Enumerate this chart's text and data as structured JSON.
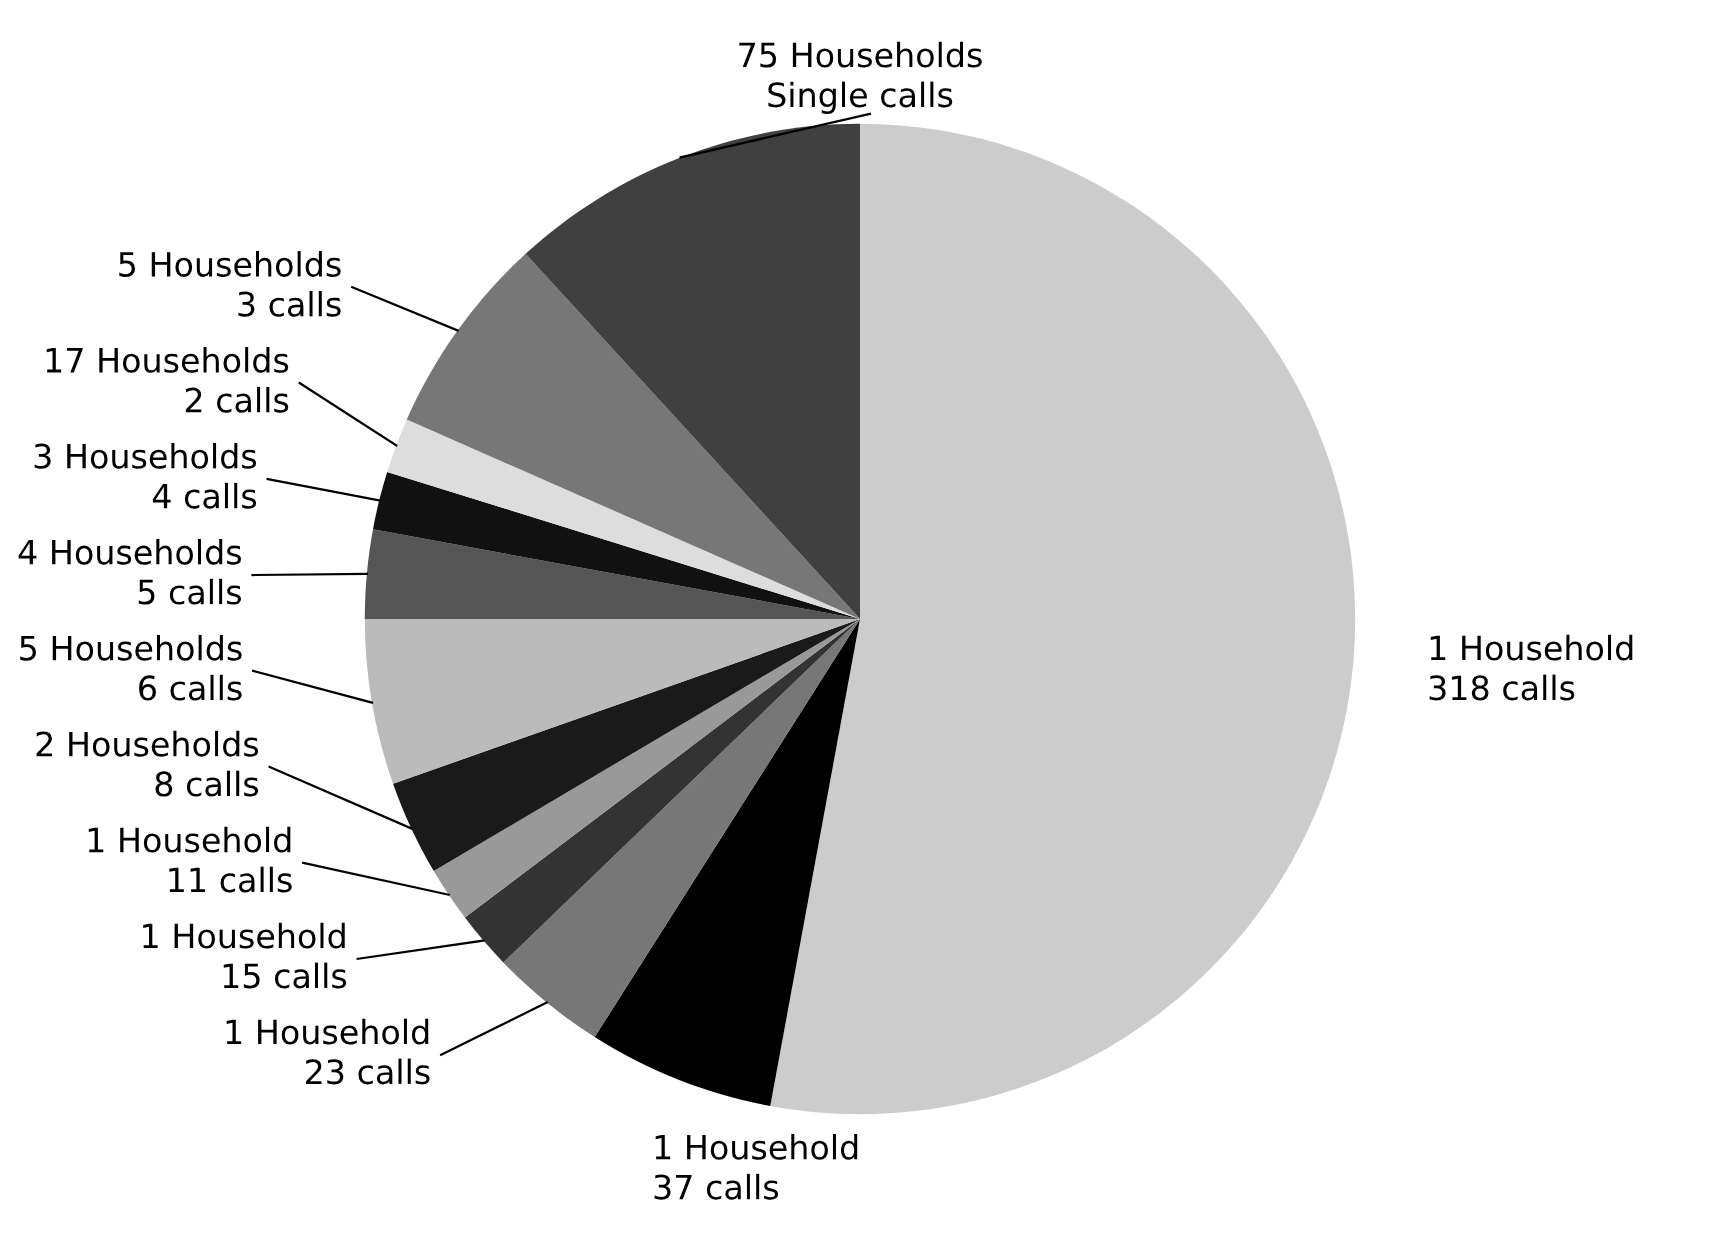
{
  "chart_data": {
    "type": "pie",
    "categories": [
      "1 Household\n318 calls",
      "1 Household\n37 calls",
      "1 Household\n23 calls",
      "1 Household\n15 calls",
      "1 Household\n11 calls",
      "2 Households\n8 calls",
      "5 Households\n6 calls",
      "4 Households\n5 calls",
      "3 Households\n4 calls",
      "17 Households\n2 calls",
      "5 Households\n3 calls",
      "75 Households\nSingle calls"
    ],
    "values": [
      52.9,
      6.1,
      3.8,
      1.9,
      1.8,
      3.1,
      5.4,
      2.9,
      1.9,
      1.8,
      6.6,
      11.8
    ],
    "colors": [
      "#cccccc",
      "#000000",
      "#777777",
      "#333333",
      "#999999",
      "#1a1a1a",
      "#bbbbbb",
      "#555555",
      "#111111",
      "#dddddd",
      "#777777",
      "#404040"
    ]
  }
}
